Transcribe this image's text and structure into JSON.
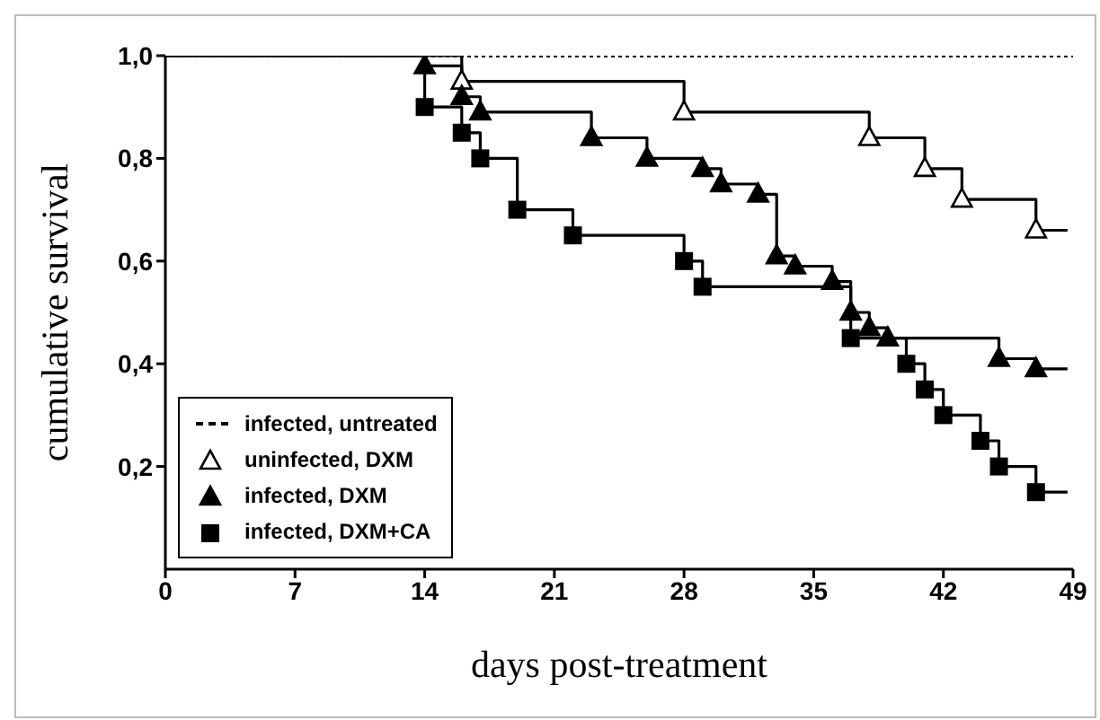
{
  "chart_data": {
    "type": "step",
    "xlabel": "days post-treatment",
    "ylabel": "cumulative survival",
    "xlim": [
      0,
      49
    ],
    "xticks": [
      0,
      7,
      14,
      21,
      28,
      35,
      42,
      49
    ],
    "ylim": [
      0,
      1
    ],
    "yticks": [
      {
        "value": 0.2,
        "label": "0,2"
      },
      {
        "value": 0.4,
        "label": "0,4"
      },
      {
        "value": 0.6,
        "label": "0,6"
      },
      {
        "value": 0.8,
        "label": "0,8"
      },
      {
        "value": 1,
        "label": "1,0"
      }
    ],
    "grid": false,
    "legend": "bottom left",
    "series": [
      {
        "name": "infected, untreated",
        "color": "#000000",
        "line_style": "dotted",
        "marker": "none",
        "x": [
          0,
          49
        ],
        "values": [
          1,
          1
        ]
      },
      {
        "name": "uninfected, DXM",
        "color": "#ffffff",
        "marker": "triangle",
        "x": [
          0,
          16,
          28,
          38,
          41,
          43,
          47,
          48.7
        ],
        "values": [
          1,
          0.95,
          0.89,
          0.84,
          0.78,
          0.72,
          0.66,
          0.66
        ]
      },
      {
        "name": "infected, DXM",
        "color": "#000000",
        "marker": "triangle",
        "x": [
          0,
          14,
          16,
          17,
          23,
          26,
          29,
          30,
          32,
          33,
          34,
          36,
          37,
          38,
          39,
          45,
          47,
          48.7
        ],
        "values": [
          1,
          0.98,
          0.92,
          0.89,
          0.84,
          0.8,
          0.78,
          0.75,
          0.73,
          0.61,
          0.59,
          0.56,
          0.5,
          0.47,
          0.45,
          0.41,
          0.39,
          0.39
        ]
      },
      {
        "name": "infected, DXM+CA",
        "color": "#000000",
        "marker": "square",
        "x": [
          0,
          14,
          16,
          17,
          19,
          22,
          28,
          29,
          37,
          40,
          41,
          42,
          44,
          45,
          47,
          48.7
        ],
        "values": [
          1,
          0.9,
          0.85,
          0.8,
          0.7,
          0.65,
          0.6,
          0.55,
          0.45,
          0.4,
          0.35,
          0.3,
          0.25,
          0.2,
          0.15,
          0.15
        ]
      }
    ]
  }
}
